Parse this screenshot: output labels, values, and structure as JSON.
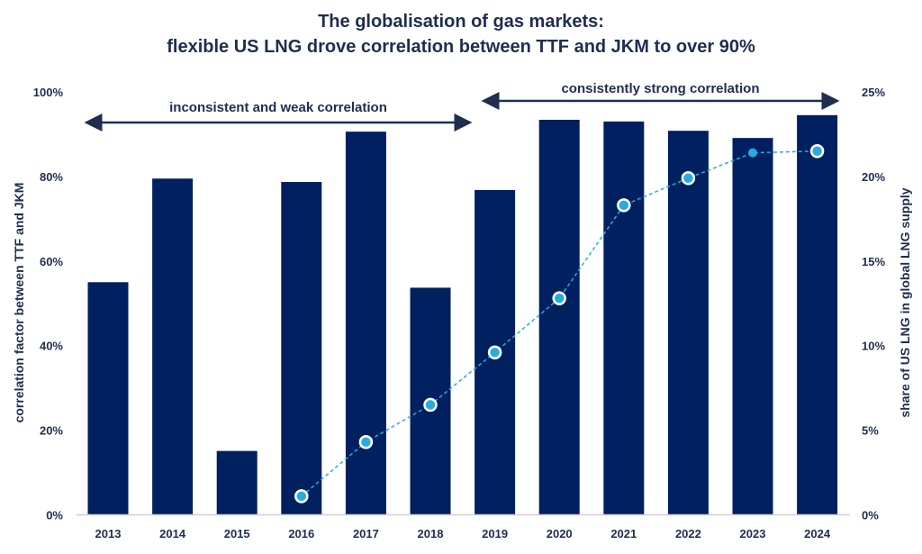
{
  "chart_data": {
    "type": "bar",
    "title": "The globalisation of gas markets:",
    "subtitle": "flexible US LNG drove correlation between TTF and JKM to over 90%",
    "categories": [
      "2013",
      "2014",
      "2015",
      "2016",
      "2017",
      "2018",
      "2019",
      "2020",
      "2021",
      "2022",
      "2023",
      "2024"
    ],
    "ylabel": "correlation factor between TTF and JKM",
    "y2label": "share of US LNG in global LNG supply",
    "ylim": [
      0,
      100
    ],
    "y2lim": [
      0,
      25
    ],
    "yticks": [
      "0%",
      "20%",
      "40%",
      "60%",
      "80%",
      "100%"
    ],
    "y2ticks": [
      "0%",
      "5%",
      "10%",
      "15%",
      "20%",
      "25%"
    ],
    "grid": false,
    "series": [
      {
        "type": "bar",
        "axis": "left",
        "color": "#002060",
        "values": [
          55.0,
          79.5,
          15.1,
          78.7,
          90.6,
          53.7,
          76.8,
          93.4,
          93.0,
          90.8,
          89.1,
          94.5
        ]
      },
      {
        "type": "line",
        "axis": "right",
        "color": "#29abe2",
        "style": "dashed",
        "values": [
          null,
          null,
          null,
          1.1,
          4.3,
          6.5,
          9.6,
          12.8,
          18.3,
          19.9,
          21.4,
          21.5
        ]
      }
    ],
    "annotations": [
      {
        "text": "inconsistent and weak correlation",
        "from": "2013",
        "to": "2019"
      },
      {
        "text": "consistently strong correlation",
        "from": "2019",
        "to": "2024"
      }
    ]
  }
}
